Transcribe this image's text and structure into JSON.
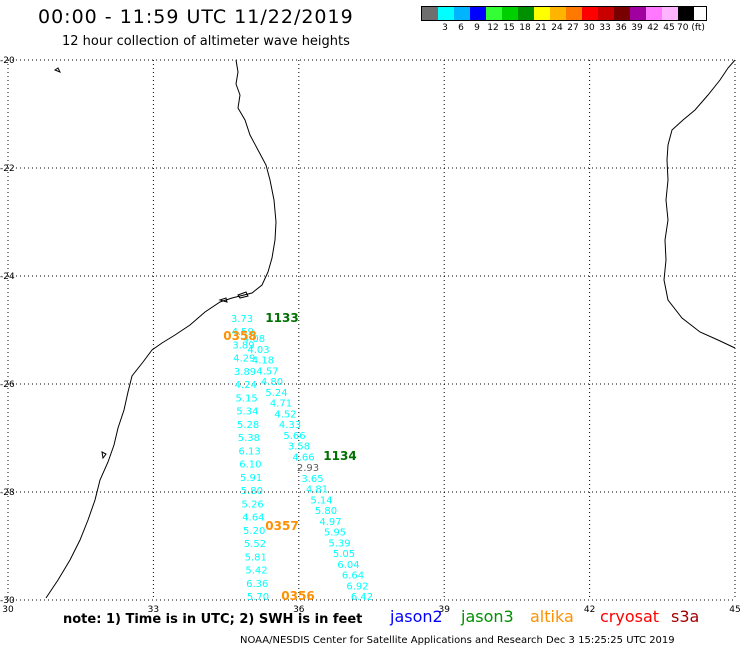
{
  "header": {
    "title": "00:00 - 11:59 UTC 11/22/2019",
    "subtitle": "12 hour collection of altimeter wave heights"
  },
  "scale": {
    "colors": [
      "#6e6e6e",
      "#00ffff",
      "#00b4ff",
      "#0000ff",
      "#34ff34",
      "#00d000",
      "#009000",
      "#ffff00",
      "#ffb400",
      "#ff7800",
      "#ff0000",
      "#c80000",
      "#780000",
      "#a000a0",
      "#ff78ff",
      "#ffb4ff",
      "#000000"
    ],
    "labels": [
      "",
      "3",
      "6",
      "9",
      "12",
      "15",
      "18",
      "21",
      "24",
      "27",
      "30",
      "33",
      "36",
      "39",
      "42",
      "45",
      "70 (ft)"
    ]
  },
  "axes": {
    "lon_ticks": [
      "30",
      "33",
      "36",
      "39",
      "42",
      "45"
    ],
    "lat_ticks": [
      "-20",
      "-22",
      "-24",
      "-26",
      "-28",
      "-30"
    ],
    "lon_range": [
      30,
      45
    ],
    "lat_range": [
      -30,
      -20
    ]
  },
  "tracks": {
    "west": [
      "3.73",
      "4.59",
      "3.89",
      "4.29",
      "3.89",
      "4.24",
      "5.15",
      "5.34",
      "5.28",
      "5.38",
      "6.13",
      "6.10",
      "5.91",
      "5.80",
      "5.26",
      "4.64",
      "5.20",
      "5.52",
      "5.81",
      "5.42",
      "6.36",
      "5.70"
    ],
    "east": [
      "4.08",
      "4.03",
      "4.18",
      "4.57",
      "4.80",
      "5.24",
      "4.71",
      "4.52",
      "4.33",
      "5.66",
      "3.58",
      "4.66",
      "2.93",
      "3.65",
      "4.81",
      "5.14",
      "5.80",
      "4.97",
      "5.95",
      "5.39",
      "5.05",
      "6.04",
      "6.64",
      "6.92",
      "6.42"
    ],
    "time_labels": [
      {
        "text": "1133",
        "color": "#007000"
      },
      {
        "text": "0358",
        "color": "#ff9000"
      },
      {
        "text": "1134",
        "color": "#007000"
      },
      {
        "text": "0357",
        "color": "#ff9000"
      },
      {
        "text": "0356",
        "color": "#ff9000"
      }
    ]
  },
  "footer": {
    "note": "note: 1) Time is in UTC; 2) SWH is in feet",
    "satellites": [
      {
        "name": "jason2",
        "color": "#0000ff"
      },
      {
        "name": "jason3",
        "color": "#009000"
      },
      {
        "name": "altika",
        "color": "#ff9000"
      },
      {
        "name": "cryosat",
        "color": "#ff0000"
      },
      {
        "name": "s3a",
        "color": "#a00000"
      }
    ],
    "credit": "NOAA/NESDIS Center for Satellite Applications and Research   Dec  3 15:25:25 UTC 2019"
  },
  "colors": {
    "swh": "#00ffff",
    "coast": "#000000",
    "grid": "#000000"
  }
}
